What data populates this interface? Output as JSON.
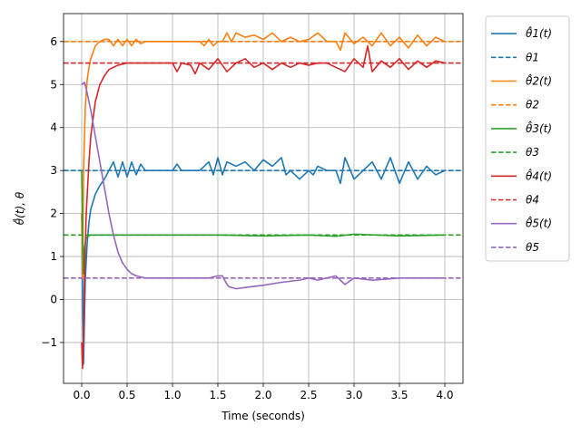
{
  "chart_data": {
    "type": "line",
    "xlabel": "Time (seconds)",
    "ylabel": "θ̂(t),  θ",
    "xlim": [
      -0.2,
      4.2
    ],
    "ylim": [
      -1.95,
      6.65
    ],
    "x_ticks": [
      0.0,
      0.5,
      1.0,
      1.5,
      2.0,
      2.5,
      3.0,
      3.5,
      4.0
    ],
    "x_tick_labels": [
      "0.0",
      "0.5",
      "1.0",
      "1.5",
      "2.0",
      "2.5",
      "3.0",
      "3.5",
      "4.0"
    ],
    "y_ticks": [
      -1,
      0,
      1,
      2,
      3,
      4,
      5,
      6
    ],
    "y_tick_labels": [
      "−1",
      "0",
      "1",
      "2",
      "3",
      "4",
      "5",
      "6"
    ],
    "grid": true,
    "legend_position": "outside-right",
    "series": [
      {
        "name": "θ̂1(t)",
        "style": "solid",
        "color": "#1f77b4",
        "x": [
          0.0,
          0.01,
          0.02,
          0.04,
          0.06,
          0.08,
          0.1,
          0.15,
          0.2,
          0.25,
          0.3,
          0.35,
          0.4,
          0.45,
          0.5,
          0.55,
          0.6,
          0.65,
          0.7,
          0.8,
          0.9,
          1.0,
          1.05,
          1.1,
          1.2,
          1.3,
          1.4,
          1.45,
          1.5,
          1.55,
          1.6,
          1.7,
          1.8,
          1.9,
          2.0,
          2.1,
          2.2,
          2.25,
          2.3,
          2.4,
          2.5,
          2.55,
          2.6,
          2.7,
          2.8,
          2.85,
          2.9,
          3.0,
          3.1,
          3.2,
          3.3,
          3.4,
          3.5,
          3.6,
          3.7,
          3.8,
          3.9,
          4.0
        ],
        "y": [
          2.0,
          0.0,
          -1.5,
          0.5,
          1.3,
          1.8,
          2.1,
          2.45,
          2.65,
          2.8,
          3.0,
          3.2,
          2.85,
          3.2,
          2.85,
          3.2,
          2.9,
          3.15,
          3.0,
          3.0,
          3.0,
          3.0,
          3.15,
          3.0,
          3.0,
          3.0,
          3.2,
          2.9,
          3.3,
          2.9,
          3.2,
          3.1,
          3.2,
          3.0,
          3.25,
          3.1,
          3.3,
          2.9,
          3.0,
          2.8,
          3.0,
          2.9,
          3.1,
          3.0,
          3.0,
          2.7,
          3.3,
          2.8,
          3.0,
          3.2,
          2.8,
          3.3,
          2.7,
          3.2,
          2.8,
          3.1,
          2.9,
          3.0
        ]
      },
      {
        "name": "θ1",
        "style": "dashed",
        "color": "#1f77b4",
        "x": [
          -0.2,
          4.2
        ],
        "y": [
          3.0,
          3.0
        ]
      },
      {
        "name": "θ̂2(t)",
        "style": "solid",
        "color": "#ff7f0e",
        "x": [
          0.0,
          0.01,
          0.02,
          0.04,
          0.06,
          0.08,
          0.1,
          0.15,
          0.2,
          0.25,
          0.3,
          0.35,
          0.4,
          0.45,
          0.5,
          0.55,
          0.6,
          0.65,
          0.7,
          0.8,
          0.9,
          1.0,
          1.1,
          1.2,
          1.3,
          1.35,
          1.4,
          1.45,
          1.5,
          1.55,
          1.6,
          1.65,
          1.7,
          1.8,
          1.9,
          2.0,
          2.1,
          2.2,
          2.3,
          2.4,
          2.5,
          2.6,
          2.7,
          2.8,
          2.85,
          2.9,
          3.0,
          3.1,
          3.2,
          3.3,
          3.4,
          3.5,
          3.6,
          3.7,
          3.8,
          3.9,
          4.0
        ],
        "y": [
          2.0,
          0.5,
          3.0,
          4.5,
          5.1,
          5.4,
          5.6,
          5.9,
          6.0,
          6.05,
          6.05,
          5.9,
          6.05,
          5.9,
          6.05,
          5.9,
          6.05,
          5.95,
          6.0,
          6.0,
          6.0,
          6.0,
          6.0,
          6.0,
          6.0,
          5.9,
          6.05,
          5.9,
          6.0,
          6.0,
          6.2,
          6.0,
          6.2,
          6.1,
          6.15,
          6.05,
          6.2,
          6.0,
          6.1,
          6.0,
          6.05,
          6.2,
          6.0,
          6.0,
          5.8,
          6.2,
          5.95,
          6.1,
          5.9,
          6.2,
          5.9,
          6.1,
          5.85,
          6.15,
          5.9,
          6.1,
          6.0
        ]
      },
      {
        "name": "θ2",
        "style": "dashed",
        "color": "#ff7f0e",
        "x": [
          -0.2,
          4.2
        ],
        "y": [
          6.0,
          6.0
        ]
      },
      {
        "name": "θ̂3(t)",
        "style": "solid",
        "color": "#2ca02c",
        "x": [
          0.0,
          0.01,
          0.02,
          0.03,
          0.05,
          0.08,
          0.1,
          0.2,
          0.5,
          1.0,
          1.5,
          2.0,
          2.5,
          2.8,
          3.0,
          3.5,
          4.0
        ],
        "y": [
          3.0,
          1.5,
          0.6,
          1.2,
          1.45,
          1.48,
          1.5,
          1.5,
          1.5,
          1.5,
          1.5,
          1.48,
          1.5,
          1.47,
          1.52,
          1.48,
          1.5
        ]
      },
      {
        "name": "θ3",
        "style": "dashed",
        "color": "#2ca02c",
        "x": [
          -0.2,
          4.2
        ],
        "y": [
          1.5,
          1.5
        ]
      },
      {
        "name": "θ̂4(t)",
        "style": "solid",
        "color": "#d62728",
        "x": [
          0.0,
          0.01,
          0.02,
          0.03,
          0.05,
          0.08,
          0.1,
          0.15,
          0.2,
          0.25,
          0.3,
          0.4,
          0.5,
          0.6,
          0.8,
          1.0,
          1.05,
          1.1,
          1.2,
          1.25,
          1.3,
          1.4,
          1.5,
          1.6,
          1.7,
          1.8,
          1.9,
          2.0,
          2.1,
          2.2,
          2.3,
          2.4,
          2.5,
          2.6,
          2.7,
          2.8,
          2.9,
          3.0,
          3.1,
          3.15,
          3.2,
          3.3,
          3.4,
          3.5,
          3.6,
          3.7,
          3.8,
          3.9,
          4.0
        ],
        "y": [
          -1.0,
          -1.6,
          -0.8,
          0.5,
          2.0,
          3.2,
          3.8,
          4.6,
          5.0,
          5.2,
          5.35,
          5.45,
          5.5,
          5.5,
          5.5,
          5.5,
          5.3,
          5.5,
          5.45,
          5.25,
          5.5,
          5.35,
          5.6,
          5.3,
          5.5,
          5.6,
          5.4,
          5.5,
          5.35,
          5.5,
          5.4,
          5.5,
          5.45,
          5.5,
          5.5,
          5.4,
          5.3,
          5.6,
          5.4,
          5.9,
          5.3,
          5.55,
          5.4,
          5.6,
          5.35,
          5.55,
          5.4,
          5.55,
          5.5
        ]
      },
      {
        "name": "θ4",
        "style": "dashed",
        "color": "#d62728",
        "x": [
          -0.2,
          4.2
        ],
        "y": [
          5.5,
          5.5
        ]
      },
      {
        "name": "θ̂5(t)",
        "style": "solid",
        "color": "#9467bd",
        "x": [
          0.0,
          0.03,
          0.05,
          0.1,
          0.15,
          0.2,
          0.25,
          0.3,
          0.35,
          0.4,
          0.45,
          0.5,
          0.55,
          0.6,
          0.7,
          0.8,
          1.0,
          1.2,
          1.4,
          1.5,
          1.55,
          1.6,
          1.62,
          1.7,
          1.8,
          2.0,
          2.2,
          2.4,
          2.5,
          2.6,
          2.7,
          2.8,
          2.9,
          3.0,
          3.2,
          3.5,
          3.8,
          4.0
        ],
        "y": [
          5.0,
          5.05,
          4.9,
          4.4,
          3.8,
          3.2,
          2.6,
          2.0,
          1.5,
          1.1,
          0.85,
          0.7,
          0.6,
          0.55,
          0.5,
          0.5,
          0.5,
          0.5,
          0.5,
          0.55,
          0.55,
          0.35,
          0.3,
          0.25,
          0.28,
          0.33,
          0.4,
          0.45,
          0.5,
          0.45,
          0.5,
          0.55,
          0.35,
          0.5,
          0.45,
          0.5,
          0.5,
          0.5
        ]
      },
      {
        "name": "θ5",
        "style": "dashed",
        "color": "#9467bd",
        "x": [
          -0.2,
          4.2
        ],
        "y": [
          0.5,
          0.5
        ]
      }
    ]
  }
}
